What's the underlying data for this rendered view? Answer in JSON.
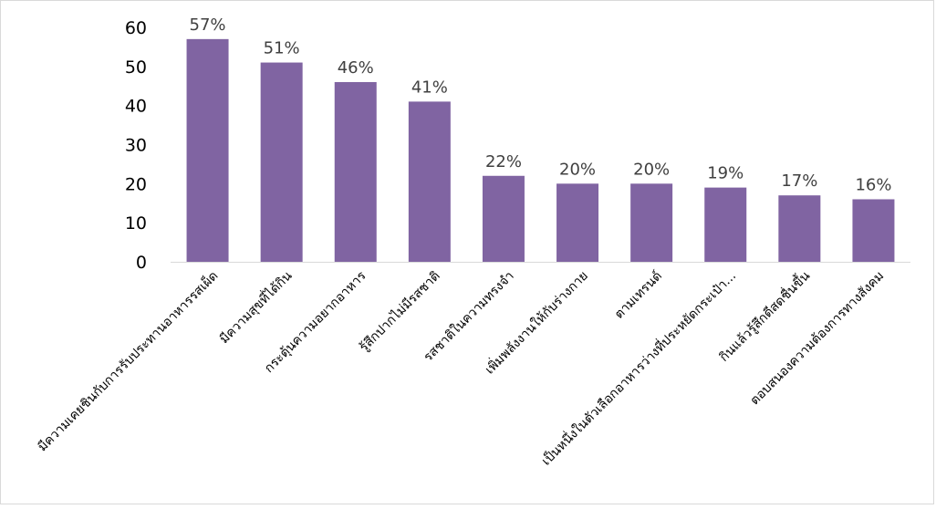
{
  "chart_data": {
    "type": "bar",
    "title": "",
    "xlabel": "",
    "ylabel": "",
    "ylim": [
      0,
      60
    ],
    "yticks": [
      0,
      10,
      20,
      30,
      40,
      50,
      60
    ],
    "grid": false,
    "legend": "none",
    "bar_color": "#8064A2",
    "categories": [
      "มีความเคยชินกับการรับประทานอาหารรสเผ็ด",
      "มีความสุขที่ได้กิน",
      "กระตุ้นความอยากอาหาร",
      "รู้สึกปากไม่มีรสชาติ",
      "รสชาติในความทรงจำ",
      "เพิ่มพลังงานให้กับร่างกาย",
      "ตามเทรนด์",
      "เป็นหนึ่งในตัวเลือกอาหารว่างที่ประหยัดกระเป๋า...",
      "กินแล้วรู้สึกดีสดชื่นขึ้น",
      "ตอบสนองความต้องการทางสังคม"
    ],
    "values": [
      57,
      51,
      46,
      41,
      22,
      20,
      20,
      19,
      17,
      16
    ],
    "data_labels": [
      "57%",
      "51%",
      "46%",
      "41%",
      "22%",
      "20%",
      "20%",
      "19%",
      "17%",
      "16%"
    ]
  }
}
